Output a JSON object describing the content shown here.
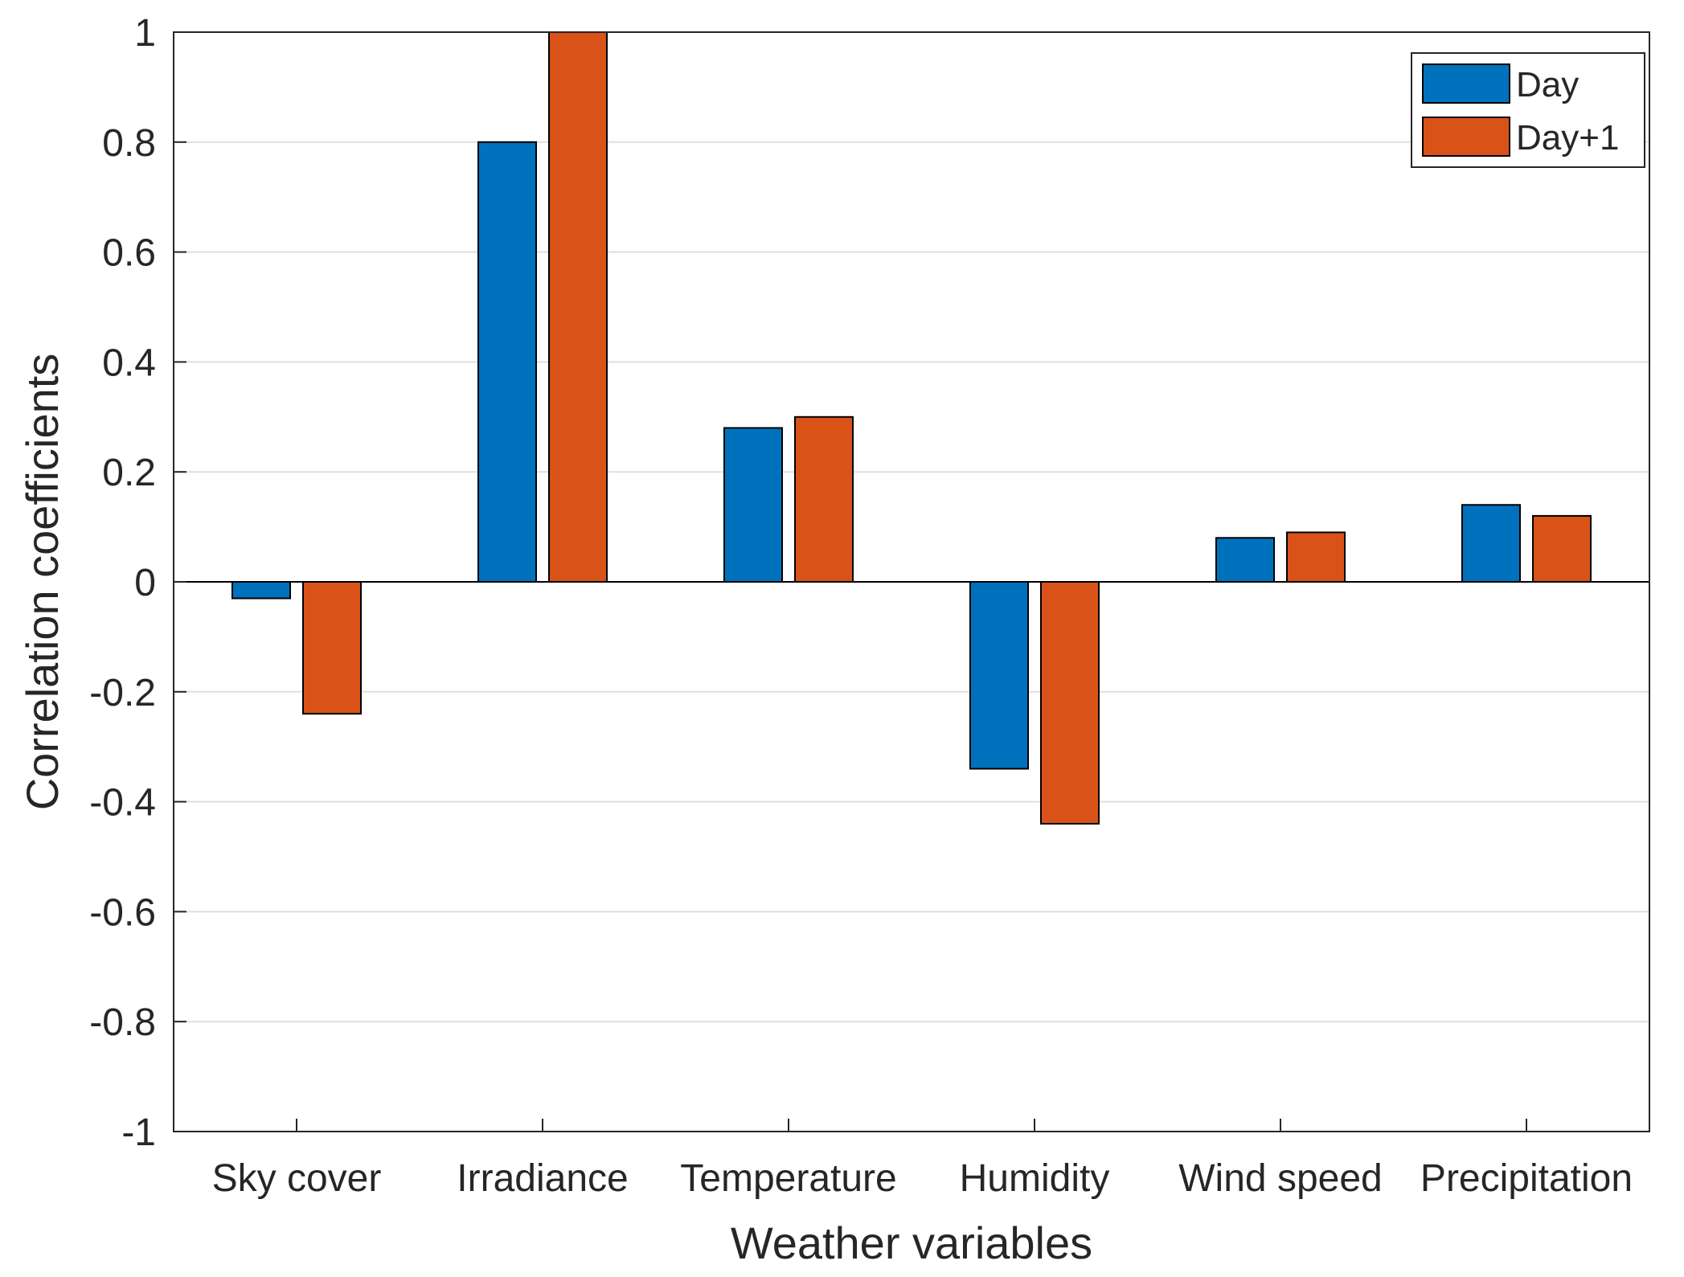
{
  "chart_data": {
    "type": "bar",
    "title": "",
    "xlabel": "Weather variables",
    "ylabel": "Correlation coefficients",
    "categories": [
      "Sky cover",
      "Irradiance",
      "Temperature",
      "Humidity",
      "Wind speed",
      "Precipitation"
    ],
    "series": [
      {
        "name": "Day",
        "color": "#0072BD",
        "values": [
          -0.03,
          0.8,
          0.28,
          -0.34,
          0.08,
          0.14
        ]
      },
      {
        "name": "Day+1",
        "color": "#D95319",
        "values": [
          -0.24,
          1.0,
          0.3,
          -0.44,
          0.09,
          0.12
        ]
      }
    ],
    "ylim": [
      -1,
      1
    ],
    "yticks": [
      1,
      0.8,
      0.6,
      0.4,
      0.2,
      0,
      -0.2,
      -0.4,
      -0.6,
      -0.8,
      -1
    ],
    "ytick_labels": [
      "1",
      "0.8",
      "0.6",
      "0.4",
      "0.2",
      "0",
      "-0.2",
      "-0.4",
      "-0.6",
      "-0.8",
      "-1"
    ],
    "grid": "horizontal",
    "legend_position": "top-right"
  }
}
